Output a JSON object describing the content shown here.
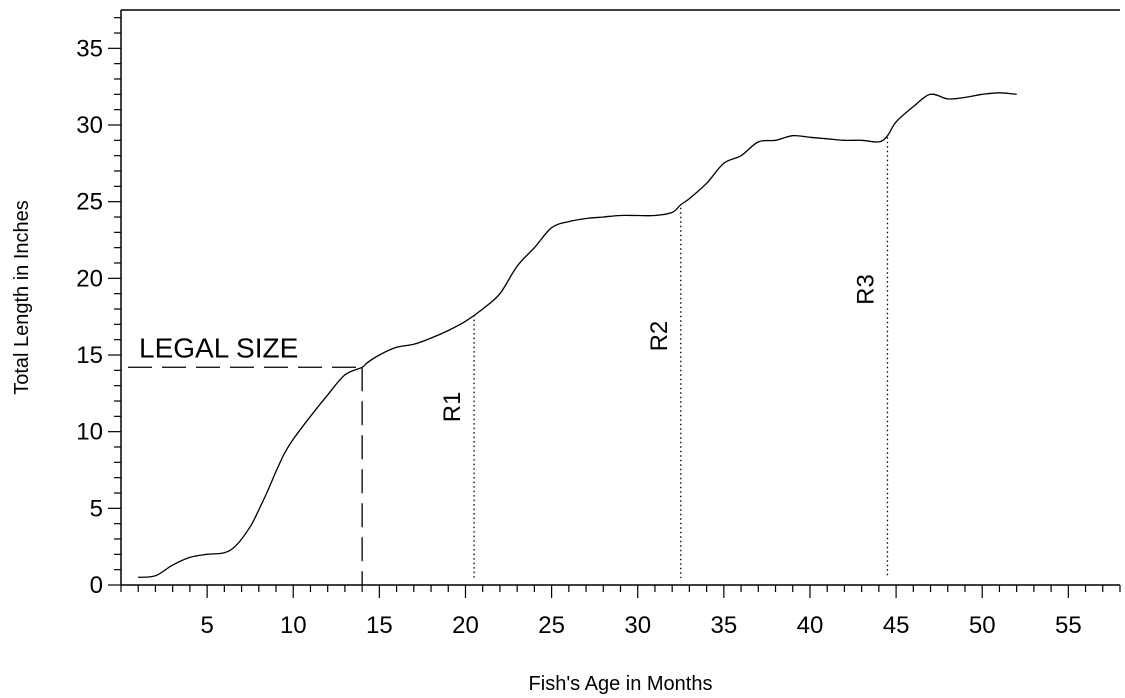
{
  "chart_data": {
    "type": "line",
    "title": "",
    "xlabel": "Fish's Age in Months",
    "ylabel": "Total Length in Inches",
    "xlim": [
      0,
      58
    ],
    "ylim": [
      0,
      37.5
    ],
    "x_ticks": [
      5,
      10,
      15,
      20,
      25,
      30,
      35,
      40,
      45,
      50,
      55
    ],
    "y_ticks": [
      0,
      5,
      10,
      15,
      20,
      25,
      30,
      35
    ],
    "grid": false,
    "series": [
      {
        "x": [
          1,
          2,
          3,
          4,
          5,
          6,
          6.7,
          7.5,
          8,
          8.5,
          9,
          9.5,
          10,
          11,
          12,
          13,
          14,
          14.3,
          15,
          16,
          17,
          18,
          19,
          20,
          21,
          22,
          23,
          24,
          25,
          26,
          27,
          28,
          29,
          30,
          31,
          32,
          32.5,
          33,
          34,
          35,
          36,
          37,
          38,
          39,
          40,
          41,
          42,
          43,
          44,
          44.5,
          45,
          46,
          47,
          48,
          49,
          50,
          51,
          52
        ],
        "y": [
          0.5,
          0.6,
          1.3,
          1.8,
          2.0,
          2.1,
          2.6,
          3.8,
          4.9,
          6.1,
          7.4,
          8.6,
          9.5,
          11.0,
          12.4,
          13.7,
          14.2,
          14.5,
          15.0,
          15.5,
          15.7,
          16.1,
          16.6,
          17.2,
          18.0,
          19.0,
          20.8,
          22.0,
          23.3,
          23.7,
          23.9,
          24.0,
          24.1,
          24.1,
          24.1,
          24.3,
          24.8,
          25.2,
          26.2,
          27.5,
          28.0,
          28.9,
          29.0,
          29.3,
          29.2,
          29.1,
          29.0,
          29.0,
          28.9,
          29.3,
          30.2,
          31.2,
          32.0,
          31.7,
          31.8,
          32.0,
          32.1,
          32.0
        ]
      }
    ],
    "annotations": [
      {
        "text": "LEGAL SIZE",
        "type": "threshold",
        "x": 14,
        "y": 14.2
      },
      {
        "text": "R1",
        "type": "vertical-line",
        "x": 20.5,
        "y_top": 17.6
      },
      {
        "text": "R2",
        "type": "vertical-line",
        "x": 32.5,
        "y_top": 24.6
      },
      {
        "text": "R3",
        "type": "vertical-line",
        "x": 44.5,
        "y_top": 29.2
      }
    ]
  }
}
